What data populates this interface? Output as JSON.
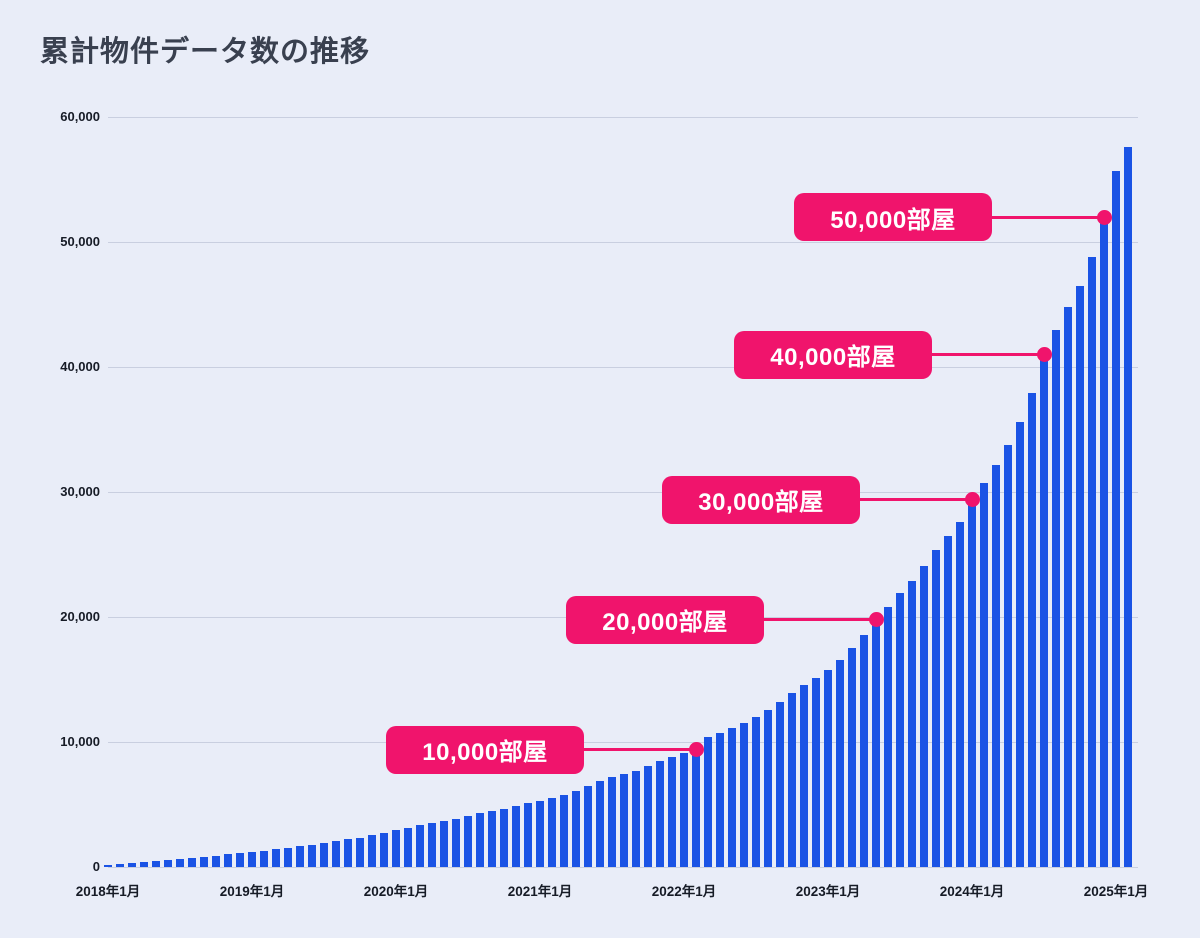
{
  "title": "累計物件データ数の推移",
  "chart_data": {
    "type": "bar",
    "title": "累計物件データ数の推移",
    "unit_label": "部屋",
    "grid": "horizontal",
    "legend": "none",
    "ylim": [
      0,
      60000
    ],
    "y_ticks": [
      {
        "v": 0,
        "label": "0"
      },
      {
        "v": 10000,
        "label": "10,000"
      },
      {
        "v": 20000,
        "label": "20,000"
      },
      {
        "v": 30000,
        "label": "30,000"
      },
      {
        "v": 40000,
        "label": "40,000"
      },
      {
        "v": 50000,
        "label": "50,000"
      },
      {
        "v": 60000,
        "label": "60,000"
      }
    ],
    "x_ticks": [
      {
        "label": "2018年1月",
        "month_index": 0
      },
      {
        "label": "2019年1月",
        "month_index": 12
      },
      {
        "label": "2020年1月",
        "month_index": 24
      },
      {
        "label": "2021年1月",
        "month_index": 36
      },
      {
        "label": "2022年1月",
        "month_index": 48
      },
      {
        "label": "2023年1月",
        "month_index": 60
      },
      {
        "label": "2024年1月",
        "month_index": 72
      },
      {
        "label": "2025年1月",
        "month_index": 84
      }
    ],
    "values_by_year": {
      "2018": [
        150,
        220,
        300,
        380,
        470,
        560,
        650,
        740,
        830,
        920,
        1010,
        1100
      ],
      "2019": [
        1200,
        1300,
        1420,
        1540,
        1660,
        1790,
        1930,
        2070,
        2210,
        2360,
        2550,
        2750
      ],
      "2020": [
        2950,
        3150,
        3350,
        3550,
        3700,
        3850,
        4050,
        4300,
        4500,
        4650,
        4850,
        5100
      ],
      "2021": [
        5300,
        5500,
        5800,
        6100,
        6450,
        6900,
        7200,
        7450,
        7700,
        8100,
        8500,
        8800
      ],
      "2022": [
        9100,
        9400,
        10400,
        10750,
        11100,
        11500,
        12000,
        12550,
        13200,
        13900,
        14550,
        15100
      ],
      "2023": [
        15800,
        16600,
        17500,
        18600,
        19800,
        20800,
        21900,
        22900,
        24100,
        25400,
        26500,
        27600
      ],
      "2024": [
        29400,
        30700,
        32200,
        33800,
        35600,
        37900,
        41000,
        43000,
        44800,
        46500,
        48800,
        52000
      ],
      "2025": [
        55700,
        57600
      ]
    },
    "annotations": [
      {
        "label": "10,000部屋",
        "month_index": 49,
        "value": 9400
      },
      {
        "label": "20,000部屋",
        "month_index": 64,
        "value": 19800
      },
      {
        "label": "30,000部屋",
        "month_index": 72,
        "value": 29400
      },
      {
        "label": "40,000部屋",
        "month_index": 78,
        "value": 41000
      },
      {
        "label": "50,000部屋",
        "month_index": 83,
        "value": 52000
      }
    ],
    "colors": {
      "background": "#E9EDF8",
      "bar": "#1A53E5",
      "annotation": "#F0146C",
      "gridline": "#C9CFE0",
      "title_text": "#39404F",
      "axis_text": "#161B26",
      "annotation_text": "#FFFFFF"
    }
  }
}
